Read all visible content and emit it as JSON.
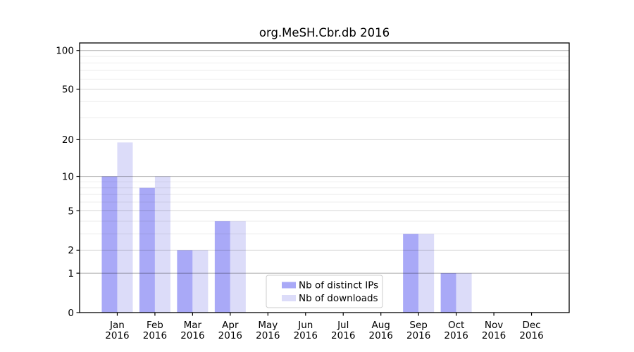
{
  "figure": {
    "background": "#ffffff",
    "text_color": "#000000",
    "legend_border_color": "#cccccc"
  },
  "chart_data": {
    "type": "bar",
    "title": "org.MeSH.Cbr.db 2016",
    "scale": "log1p",
    "grid": true,
    "categories": [
      "Jan",
      "Feb",
      "Mar",
      "Apr",
      "May",
      "Jun",
      "Jul",
      "Aug",
      "Sep",
      "Oct",
      "Nov",
      "Dec"
    ],
    "year_label": "2016",
    "series": [
      {
        "name": "Nb of distinct IPs",
        "color": "#a9a9f7",
        "values": [
          10,
          8,
          2,
          4,
          0,
          0,
          0,
          0,
          3,
          1,
          0,
          0
        ]
      },
      {
        "name": "Nb of downloads",
        "color": "#dcdcf9",
        "values": [
          19,
          10,
          2,
          4,
          0,
          0,
          0,
          0,
          3,
          1,
          0,
          0
        ]
      }
    ],
    "y_axis": {
      "tick_labels": [
        0,
        1,
        2,
        5,
        10,
        20,
        50,
        100
      ],
      "gridlines_decade": [
        1,
        10,
        100
      ],
      "gridlines_major": [
        2,
        5,
        20,
        50
      ],
      "gridlines_minor": [
        3,
        4,
        6,
        7,
        8,
        9,
        30,
        40,
        60,
        70,
        80,
        90
      ],
      "range_max": 100
    },
    "legend": {
      "entries": [
        "Nb of distinct IPs",
        "Nb of downloads"
      ],
      "position": "lower center"
    }
  }
}
